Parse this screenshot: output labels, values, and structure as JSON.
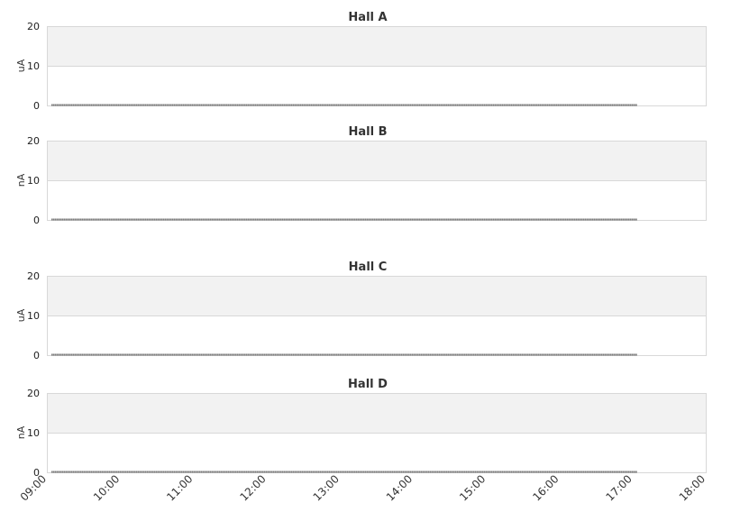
{
  "chart_data": [
    {
      "type": "line",
      "title": "Hall A",
      "ylabel": "uA",
      "ylim": [
        0,
        20
      ],
      "yticks": [
        0,
        10,
        20
      ],
      "grid": true,
      "series": [
        {
          "start": "09:04",
          "end": "17:04",
          "value": 0
        }
      ]
    },
    {
      "type": "line",
      "title": "Hall B",
      "ylabel": "nA",
      "ylim": [
        0,
        20
      ],
      "yticks": [
        0,
        10,
        20
      ],
      "grid": true,
      "series": [
        {
          "start": "09:04",
          "end": "17:04",
          "value": 0
        }
      ]
    },
    {
      "type": "line",
      "title": "Hall C",
      "ylabel": "uA",
      "ylim": [
        0,
        20
      ],
      "yticks": [
        0,
        10,
        20
      ],
      "grid": true,
      "series": [
        {
          "start": "09:04",
          "end": "17:04",
          "value": 0
        }
      ]
    },
    {
      "type": "line",
      "title": "Hall D",
      "ylabel": "nA",
      "ylim": [
        0,
        20
      ],
      "yticks": [
        0,
        10,
        20
      ],
      "grid": true,
      "series": [
        {
          "start": "09:04",
          "end": "17:04",
          "value": 0
        }
      ]
    }
  ],
  "xaxis": {
    "xlim": [
      "09:00",
      "18:00"
    ],
    "ticks": [
      "09:00",
      "10:00",
      "11:00",
      "12:00",
      "13:00",
      "14:00",
      "15:00",
      "16:00",
      "17:00",
      "18:00"
    ]
  },
  "colors": {
    "band": "#f2f2f2",
    "border": "#d8d8d8",
    "line": "#222222",
    "text": "#333333"
  }
}
